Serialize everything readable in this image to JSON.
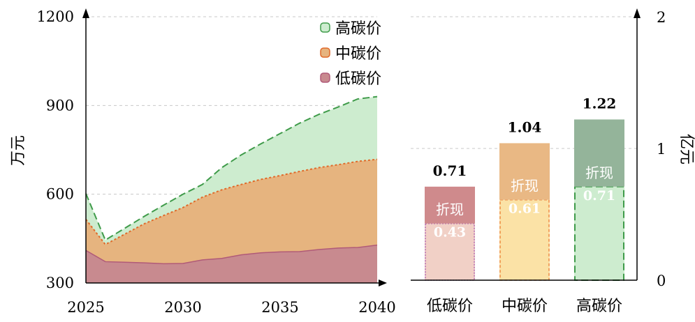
{
  "chart_data": [
    {
      "type": "area",
      "ylabel": "万元",
      "x": [
        2025,
        2026,
        2027,
        2028,
        2029,
        2030,
        2031,
        2032,
        2033,
        2034,
        2035,
        2036,
        2037,
        2038,
        2039,
        2040
      ],
      "xticks": [
        2025,
        2030,
        2035,
        2040
      ],
      "yticks": [
        300,
        600,
        900,
        1200
      ],
      "xlim": [
        2025,
        2040
      ],
      "ylim": [
        300,
        1200
      ],
      "grid": "horizontal dashed",
      "legend_position": "top-right",
      "series": [
        {
          "name": "低碳价",
          "color": "#c88a8f",
          "line": "#b05a78",
          "values": [
            410,
            372,
            370,
            368,
            365,
            366,
            378,
            383,
            395,
            402,
            405,
            406,
            413,
            418,
            420,
            428
          ]
        },
        {
          "name": "中碳价",
          "color": "#e6b47f",
          "line": "#e06a2a",
          "values": [
            515,
            430,
            465,
            500,
            528,
            555,
            590,
            615,
            633,
            650,
            663,
            677,
            690,
            700,
            711,
            718
          ]
        },
        {
          "name": "高碳价",
          "color": "#cdeccf",
          "line": "#3f9b4a",
          "values": [
            602,
            445,
            485,
            525,
            563,
            600,
            633,
            690,
            733,
            770,
            805,
            840,
            870,
            895,
            922,
            930
          ]
        }
      ]
    },
    {
      "type": "bar",
      "ylabel": "亿元",
      "categories": [
        "低碳价",
        "中碳价",
        "高碳价"
      ],
      "yticks": [
        0,
        1,
        2
      ],
      "ylim": [
        0,
        2
      ],
      "grid": "horizontal dashed",
      "totals": [
        0.71,
        1.04,
        1.22
      ],
      "discounted": [
        0.43,
        0.61,
        0.71
      ],
      "discount_label": "折现",
      "top_colors": [
        "#cf8a8c",
        "#e9b884",
        "#94b49a"
      ],
      "bottom_colors": [
        "#f1d0c6",
        "#fbe2a6",
        "#cdeccf"
      ],
      "border_colors": [
        "#b368b5",
        "#ee8b45",
        "#3f9b4a"
      ]
    }
  ]
}
